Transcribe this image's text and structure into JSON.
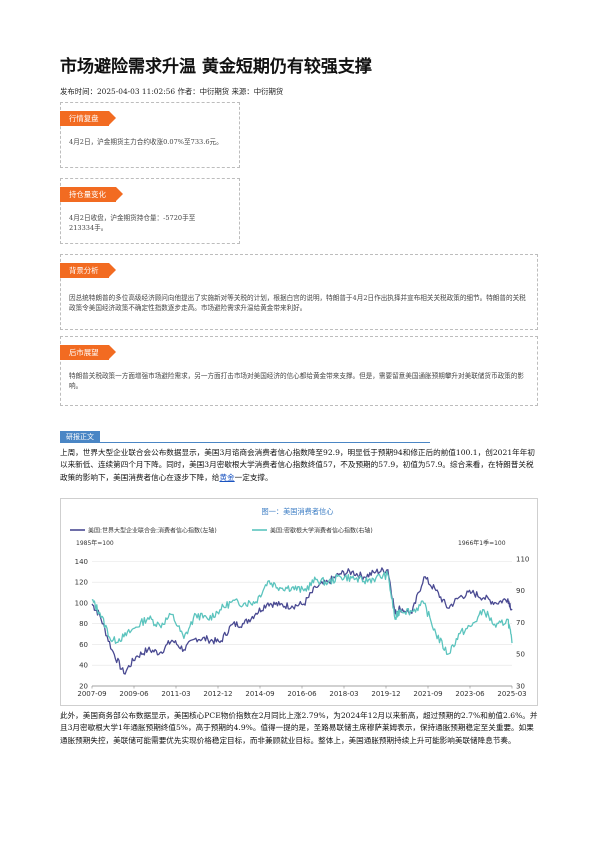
{
  "article": {
    "title": "市场避险需求升温 黄金短期仍有较强支撑",
    "meta": "发布时间：2025-04-03 11:02:56 作者：中衍期货 来源：中衍期货"
  },
  "sections": [
    {
      "tag": "行情复盘",
      "text": "4月2日，沪金期货主力合约收涨0.07%至733.6元。"
    },
    {
      "tag": "持仓量变化",
      "text": "4月2日收盘，沪金期货持仓量：-5720手至213334手。"
    },
    {
      "tag": "背景分析",
      "text": "因总统特朗普的多位高级经济顾问向他提出了实施新对等关税的计划，根据白宫的说明，特朗普于4月2日作出执择并宣布相关关税政策的细节。特朗普的关税政策令美国经济政策不确定性指数逐步走高。市场避险需求升温给黄金带来利好。"
    },
    {
      "tag": "后市展望",
      "text": "特朗普关税政策一方面增强市场避险需求，另一方面打击市场对美国经济的信心都给黄金带来支撑。但是，需要留意美国通胀预期攀升对美联储货币政策的影响。"
    }
  ],
  "research": {
    "tag": "研报正文",
    "para1_before": "上周，世界大型企业联合会公布数据显示，美国3月谘商会消费者信心指数降至92.9，明显低于预期94和修正后的前值100.1，创2021年年初以来新低、连续第四个月下降。同时，美国3月密歇根大学消费者信心指数终值57，不及预期的57.9，初值为57.9。综合来看，在特朗普关税政策的影响下，美国消费者信心在逐步下降，给",
    "para1_link": "黄金",
    "para1_after": "一定支撑。",
    "para2": "此外，美国商务部公布数据显示，美国核心PCE物价指数在2月同比上涨2.79%，为2024年12月以来新高，超过预期的2.7%和前值2.6%。并且3月密歇根大学1年通胀预期终值5%，高于预期的4.9%。值得一提的是，圣路易联储主席穆萨莱姆表示，保持通胀预期稳定至关重要。如果通胀预期失控，美联储可能需要优先实现价格稳定目标，而非兼顾就业目标。整体上，美国通胀预期持续上升可能影响美联储降息节奏。"
  },
  "colors": {
    "accent": "#f26b21",
    "blue_tag": "#4a86c5",
    "series1": "#4a4a92",
    "series2": "#5cc4be"
  },
  "chart_data": {
    "type": "line",
    "title": "图一：美国消费者信心",
    "left_axis_note": "1985年=100",
    "right_axis_note": "1966年1季=100",
    "series": [
      {
        "name": "美国:世界大型企业联合会:消费者信心指数(左轴)",
        "axis": "left",
        "x": [
          2007.67,
          2008.0,
          2008.5,
          2009.0,
          2009.5,
          2010.0,
          2010.5,
          2011.0,
          2011.5,
          2012.0,
          2012.5,
          2013.0,
          2013.5,
          2014.0,
          2014.5,
          2015.0,
          2015.5,
          2016.0,
          2016.5,
          2017.0,
          2017.5,
          2018.0,
          2018.5,
          2019.0,
          2019.5,
          2020.0,
          2020.3,
          2020.5,
          2021.0,
          2021.5,
          2022.0,
          2022.5,
          2023.0,
          2023.5,
          2024.0,
          2024.5,
          2025.0,
          2025.17
        ],
        "values": [
          99,
          88,
          55,
          32,
          48,
          55,
          52,
          64,
          55,
          66,
          65,
          62,
          79,
          80,
          90,
          100,
          98,
          97,
          99,
          115,
          120,
          128,
          130,
          125,
          130,
          132,
          90,
          95,
          90,
          125,
          112,
          95,
          106,
          110,
          105,
          100,
          104,
          93
        ]
      },
      {
        "name": "美国:密歇根大学消费者信心指数(右轴)",
        "axis": "right",
        "x": [
          2007.67,
          2008.0,
          2008.5,
          2009.0,
          2009.5,
          2010.0,
          2010.5,
          2011.0,
          2011.5,
          2012.0,
          2012.5,
          2013.0,
          2013.5,
          2014.0,
          2014.5,
          2015.0,
          2015.5,
          2016.0,
          2016.5,
          2017.0,
          2017.5,
          2018.0,
          2018.5,
          2019.0,
          2019.5,
          2020.0,
          2020.3,
          2020.5,
          2021.0,
          2021.5,
          2022.0,
          2022.5,
          2023.0,
          2023.5,
          2024.0,
          2024.5,
          2025.0,
          2025.17
        ],
        "values": [
          84,
          76,
          58,
          61,
          67,
          73,
          68,
          75,
          60,
          75,
          72,
          78,
          83,
          82,
          83,
          96,
          92,
          92,
          90,
          97,
          95,
          99,
          98,
          96,
          98,
          100,
          72,
          78,
          77,
          82,
          63,
          50,
          63,
          68,
          78,
          67,
          72,
          57
        ]
      }
    ],
    "x_ticks": [
      "2007-09",
      "2009-06",
      "2011-03",
      "2012-12",
      "2014-09",
      "2016-06",
      "2018-03",
      "2019-12",
      "2021-09",
      "2023-06",
      "2025-03"
    ],
    "x_tick_values": [
      2007.67,
      2009.42,
      2011.17,
      2012.92,
      2014.67,
      2016.42,
      2018.17,
      2019.92,
      2021.67,
      2023.42,
      2025.17
    ],
    "y_left_ticks": [
      20,
      40,
      60,
      80,
      100,
      120,
      140
    ],
    "y_right_ticks": [
      30,
      50,
      70,
      90,
      110
    ],
    "ylim_left": [
      20,
      150
    ],
    "ylim_right": [
      30,
      115
    ],
    "grid": true,
    "legend": "top-left"
  }
}
